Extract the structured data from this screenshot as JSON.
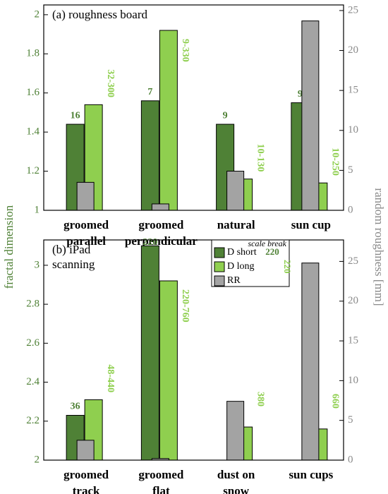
{
  "chart_data": [
    {
      "type": "bar",
      "panel_label": [
        "(a) roughness board"
      ],
      "ylabel": "fractal dimension",
      "y2label": "random roughness [mm]",
      "categories": [
        [
          "groomed",
          "parallel"
        ],
        [
          "groomed",
          "perpendicular"
        ],
        [
          "natural"
        ],
        [
          "sun cup"
        ]
      ],
      "ylim": [
        1,
        2.05
      ],
      "yticks": [
        1,
        1.2,
        1.4,
        1.6,
        1.8,
        2
      ],
      "y2lim": [
        0,
        25.7
      ],
      "y2ticks": [
        0,
        5,
        10,
        15,
        20,
        25
      ],
      "series": [
        {
          "name": "D short",
          "color": "#4f8136",
          "values": [
            1.44,
            1.56,
            1.44,
            1.55
          ],
          "scale_labels": [
            "16",
            "7",
            "9",
            "9"
          ]
        },
        {
          "name": "D long",
          "color": "#8fcf4f",
          "values": [
            1.54,
            1.92,
            1.16,
            1.14
          ],
          "scale_labels": [
            "32-300",
            "9-330",
            "10-130",
            "10-250"
          ]
        },
        {
          "name": "RR",
          "color": "#a3a3a3",
          "axis": "y2",
          "values": [
            3.5,
            0.8,
            4.9,
            23.7
          ]
        }
      ]
    },
    {
      "type": "bar",
      "panel_label": [
        "(b) iPad",
        "scanning"
      ],
      "categories": [
        [
          "groomed",
          "track"
        ],
        [
          "groomed",
          "flat"
        ],
        [
          "dust on",
          "snow"
        ],
        [
          "sun cups"
        ]
      ],
      "ylim": [
        2,
        3.13
      ],
      "yticks": [
        2,
        2.2,
        2.4,
        2.6,
        2.8,
        3
      ],
      "y2lim": [
        0,
        27.7
      ],
      "y2ticks": [
        0,
        5,
        10,
        15,
        20,
        25
      ],
      "legend": true,
      "legend_note": "scale break",
      "break_labels": [
        "220",
        "220"
      ],
      "series": [
        {
          "name": "D short",
          "color": "#4f8136",
          "values": [
            2.23,
            3.1,
            null,
            null
          ],
          "scale_labels": [
            "36",
            "220",
            null,
            null
          ]
        },
        {
          "name": "D long",
          "color": "#8fcf4f",
          "values": [
            2.31,
            2.92,
            2.17,
            2.16
          ],
          "scale_labels": [
            "48-440",
            "220-760",
            "380",
            "660"
          ]
        },
        {
          "name": "RR",
          "color": "#a3a3a3",
          "axis": "y2",
          "values": [
            2.5,
            0.2,
            7.4,
            24.8
          ]
        }
      ]
    }
  ]
}
